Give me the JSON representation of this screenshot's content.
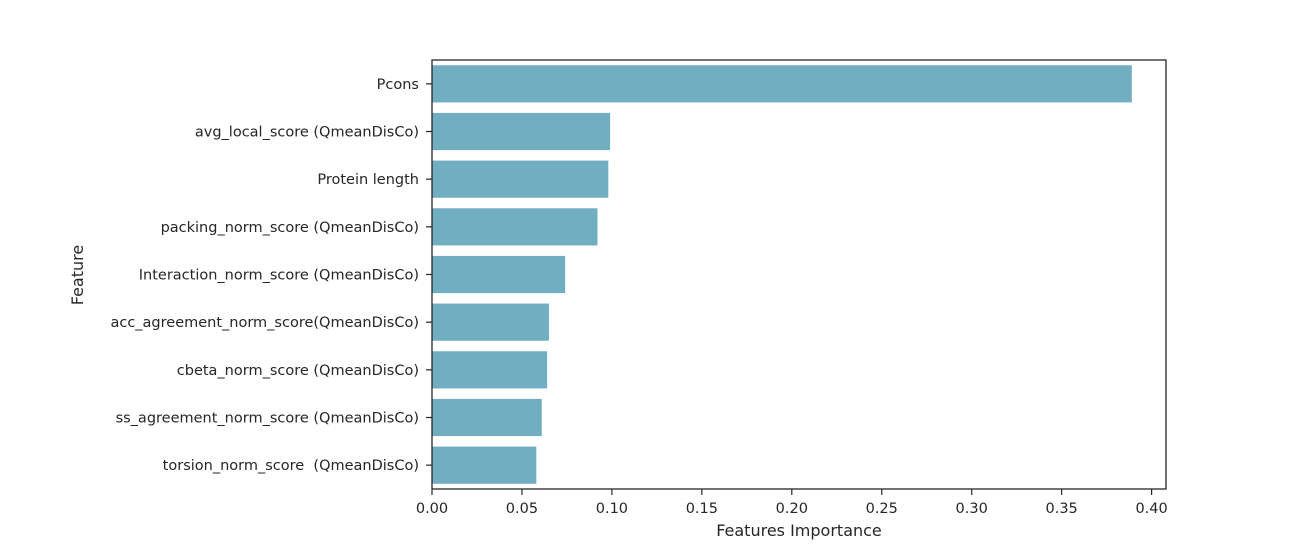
{
  "chart_data": {
    "type": "bar",
    "orientation": "horizontal",
    "title": "",
    "xlabel": "Features Importance",
    "ylabel": "Feature",
    "categories": [
      "Pcons",
      "avg_local_score (QmeanDisCo)",
      "Protein length",
      "packing_norm_score (QmeanDisCo)",
      "Interaction_norm_score (QmeanDisCo)",
      "acc_agreement_norm_score(QmeanDisCo)",
      "cbeta_norm_score (QmeanDisCo)",
      "ss_agreement_norm_score (QmeanDisCo)",
      "torsion_norm_score  (QmeanDisCo)"
    ],
    "values": [
      0.389,
      0.099,
      0.098,
      0.092,
      0.074,
      0.065,
      0.064,
      0.061,
      0.058
    ],
    "xlim": [
      0.0,
      0.408
    ],
    "xticks": [
      0.0,
      0.05,
      0.1,
      0.15,
      0.2,
      0.25,
      0.3,
      0.35,
      0.4
    ],
    "xtick_labels": [
      "0.00",
      "0.05",
      "0.10",
      "0.15",
      "0.20",
      "0.25",
      "0.30",
      "0.35",
      "0.40"
    ],
    "grid": false,
    "legend": "none",
    "bar_color": "#72aec1",
    "axis_color": "#262626"
  }
}
